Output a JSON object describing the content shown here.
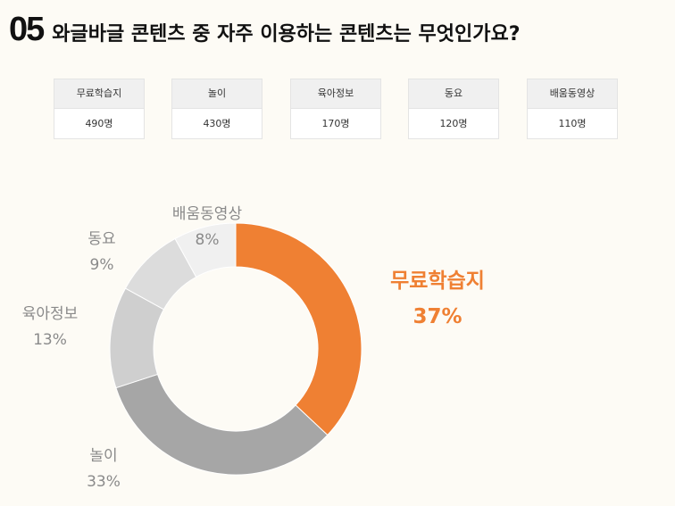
{
  "header": {
    "number": "05",
    "title": "와글바글 콘텐츠 중 자주 이용하는 콘텐츠는 무엇인가요?"
  },
  "cards": [
    {
      "label": "무료학습지",
      "value": "490명"
    },
    {
      "label": "놀이",
      "value": "430명"
    },
    {
      "label": "육아정보",
      "value": "170명"
    },
    {
      "label": "동요",
      "value": "120명"
    },
    {
      "label": "배움동영상",
      "value": "110명"
    }
  ],
  "chart_data": {
    "type": "pie",
    "donut": true,
    "categories": [
      "무료학습지",
      "놀이",
      "육아정보",
      "동요",
      "배움동영상"
    ],
    "values": [
      37,
      33,
      13,
      9,
      8
    ],
    "value_labels": [
      "37%",
      "33%",
      "13%",
      "9%",
      "8%"
    ],
    "colors": [
      "#ef8033",
      "#a6a6a6",
      "#cfcfcf",
      "#dcdcdc",
      "#f0f0f0"
    ],
    "highlight_color": "#ef8033",
    "label_color": "#8a8a8a",
    "start": "top, clockwise"
  }
}
